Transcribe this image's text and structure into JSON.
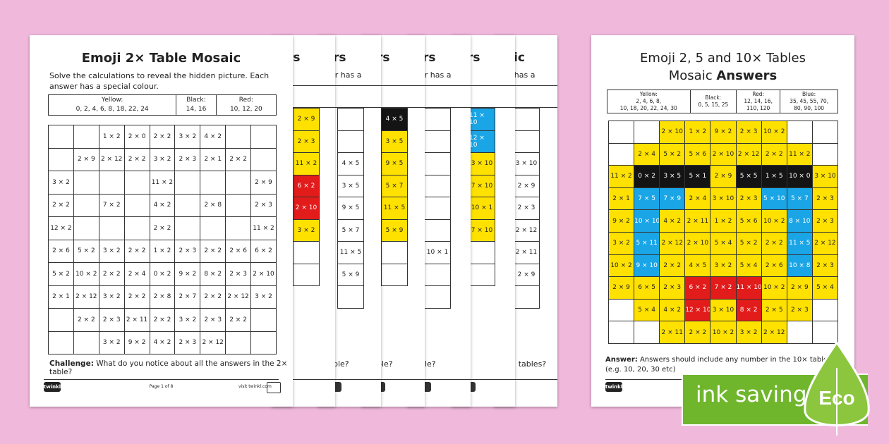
{
  "front": {
    "title": "Emoji 2× Table Mosaic",
    "intro": "Solve the calculations to reveal the hidden picture. Each answer has a special colour.",
    "key": [
      {
        "label": "Yellow:",
        "values": "0, 2, 4, 6, 8, 18, 22, 24"
      },
      {
        "label": "Black:",
        "values": "14, 16"
      },
      {
        "label": "Red:",
        "values": "10, 12, 20"
      }
    ],
    "grid": [
      [
        "",
        "",
        "1 × 2",
        "2 × 0",
        "2 × 2",
        "3 × 2",
        "4 × 2",
        "",
        ""
      ],
      [
        "",
        "2 × 9",
        "2 × 12",
        "2 × 2",
        "3 × 2",
        "2 × 3",
        "2 × 1",
        "2 × 2",
        ""
      ],
      [
        "3 × 2",
        "",
        "",
        "",
        "11 × 2",
        "",
        "",
        "",
        "2 × 9"
      ],
      [
        "2 × 2",
        "",
        "7 × 2",
        "",
        "4 × 2",
        "",
        "2 × 8",
        "",
        "2 × 3"
      ],
      [
        "12 × 2",
        "",
        "",
        "",
        "2 × 2",
        "",
        "",
        "",
        "11 × 2"
      ],
      [
        "2 × 6",
        "5 × 2",
        "3 × 2",
        "2 × 2",
        "1 × 2",
        "2 × 3",
        "2 × 2",
        "2 × 6",
        "6 × 2"
      ],
      [
        "5 × 2",
        "10 × 2",
        "2 × 2",
        "2 × 4",
        "0 × 2",
        "9 × 2",
        "8 × 2",
        "2 × 3",
        "2 × 10"
      ],
      [
        "2 × 1",
        "2 × 12",
        "3 × 2",
        "2 × 2",
        "2 × 8",
        "2 × 7",
        "2 × 2",
        "2 × 12",
        "3 × 2"
      ],
      [
        "",
        "2 × 2",
        "2 × 3",
        "2 × 11",
        "2 × 2",
        "3 × 2",
        "2 × 3",
        "2 × 2",
        ""
      ],
      [
        "",
        "",
        "3 × 2",
        "9 × 2",
        "4 × 2",
        "2 × 3",
        "2 × 12",
        "",
        ""
      ]
    ],
    "challenge_label": "Challenge:",
    "challenge_text": " What do you notice about all the answers in the 2× table?",
    "logo": "twinkl",
    "page": "Page 1 of 8",
    "url": "visit twinkl.com"
  },
  "ghosts": [
    {
      "title": "rs",
      "text": "",
      "bottom": "",
      "col": [
        [
          "2 × 9",
          "y"
        ],
        [
          "2 × 3",
          "y"
        ],
        [
          "11 × 2",
          "y"
        ],
        [
          "6 × 2",
          "r"
        ],
        [
          "2 × 10",
          "r"
        ],
        [
          "3 × 2",
          "y"
        ],
        [
          "",
          ""
        ],
        [
          "",
          ""
        ]
      ]
    },
    {
      "title": "rs",
      "text": "er has a",
      "bottom": "ble?",
      "col": [
        [
          "",
          ""
        ],
        [
          "",
          ""
        ],
        [
          "4 × 5",
          ""
        ],
        [
          "3 × 5",
          ""
        ],
        [
          "9 × 5",
          ""
        ],
        [
          "5 × 7",
          ""
        ],
        [
          "11 × 5",
          ""
        ],
        [
          "5 × 9",
          ""
        ],
        [
          "",
          ""
        ]
      ]
    },
    {
      "title": "rs",
      "text": "er has a",
      "bottom": "ble?",
      "col": [
        [
          "4 × 5",
          "k"
        ],
        [
          "3 × 5",
          "y"
        ],
        [
          "9 × 5",
          "y"
        ],
        [
          "5 × 7",
          "y"
        ],
        [
          "11 × 5",
          "y"
        ],
        [
          "5 × 9",
          "y"
        ],
        [
          "",
          ""
        ],
        [
          "",
          ""
        ]
      ]
    },
    {
      "title": "rs",
      "text": "er has a",
      "bottom": "ble?",
      "col": [
        [
          "",
          ""
        ],
        [
          "",
          ""
        ],
        [
          "",
          ""
        ],
        [
          "",
          ""
        ],
        [
          "",
          ""
        ],
        [
          "",
          ""
        ],
        [
          "10 × 1",
          ""
        ],
        [
          "",
          ""
        ],
        [
          "",
          ""
        ]
      ]
    },
    {
      "title": "rs",
      "text": "",
      "bottom": "",
      "col": [
        [
          "11 × 10",
          "b"
        ],
        [
          "12 × 10",
          "b"
        ],
        [
          "3 × 10",
          "y"
        ],
        [
          "7 × 10",
          "y"
        ],
        [
          "10 × 1",
          "y"
        ],
        [
          "7 × 10",
          "y"
        ],
        [
          "",
          ""
        ],
        [
          "",
          ""
        ]
      ]
    },
    {
      "title": "ic",
      "text": "er has a",
      "bottom": "× tables?",
      "col": [
        [
          "",
          ""
        ],
        [
          "",
          ""
        ],
        [
          "3 × 10",
          ""
        ],
        [
          "2 × 9",
          ""
        ],
        [
          "2 × 3",
          ""
        ],
        [
          "2 × 12",
          ""
        ],
        [
          "2 × 11",
          ""
        ],
        [
          "2 × 9",
          ""
        ],
        [
          "",
          ""
        ]
      ]
    }
  ],
  "answers": {
    "title_line1": "Emoji 2, 5 and 10× Tables",
    "title_line2_plain": "Mosaic ",
    "title_line2_bold": "Answers",
    "key": [
      {
        "label": "Yellow:",
        "values": "2, 4, 6, 8,",
        "values2": "10, 18, 20, 22, 24, 30"
      },
      {
        "label": "Black:",
        "values": "0, 5, 15, 25",
        "values2": ""
      },
      {
        "label": "Red:",
        "values": "12, 14, 16,",
        "values2": "110, 120"
      },
      {
        "label": "Blue:",
        "values": "35, 45, 55, 70,",
        "values2": "80, 90, 100"
      }
    ],
    "grid": [
      [
        "",
        "",
        "2 × 10",
        "1 × 2",
        "9 × 2",
        "2 × 3",
        "10 × 2",
        "",
        ""
      ],
      [
        "",
        "2 × 4",
        "5 × 2",
        "5 × 6",
        "2 × 10",
        "2 × 12",
        "2 × 2",
        "11 × 2",
        ""
      ],
      [
        "11 × 2",
        "0 × 2",
        "3 × 5",
        "5 × 1",
        "2 × 9",
        "5 × 5",
        "1 × 5",
        "10 × 0",
        "3 × 10"
      ],
      [
        "2 × 1",
        "7 × 5",
        "7 × 9",
        "2 × 4",
        "3 × 10",
        "2 × 3",
        "5 × 10",
        "5 × 7",
        "2 × 3"
      ],
      [
        "9 × 2",
        "10 × 10",
        "4 × 2",
        "2 × 11",
        "1 × 2",
        "5 × 6",
        "10 × 2",
        "8 × 10",
        "2 × 3"
      ],
      [
        "3 × 2",
        "5 × 11",
        "2 × 12",
        "2 × 10",
        "5 × 4",
        "5 × 2",
        "2 × 2",
        "11 × 5",
        "2 × 12"
      ],
      [
        "10 × 2",
        "9 × 10",
        "2 × 2",
        "4 × 5",
        "3 × 2",
        "5 × 4",
        "2 × 6",
        "10 × 8",
        "2 × 3"
      ],
      [
        "2 × 9",
        "6 × 5",
        "2 × 3",
        "6 × 2",
        "7 × 2",
        "11 × 10",
        "10 × 2",
        "2 × 9",
        "5 × 4"
      ],
      [
        "",
        "5 × 4",
        "4 × 2",
        "12 × 10",
        "3 × 10",
        "8 × 2",
        "2 × 5",
        "2 × 3",
        ""
      ],
      [
        "",
        "",
        "2 × 11",
        "2 × 2",
        "10 × 2",
        "3 × 2",
        "2 × 12",
        "",
        ""
      ]
    ],
    "colors": [
      [
        "w",
        "w",
        "y",
        "y",
        "y",
        "y",
        "y",
        "w",
        "w"
      ],
      [
        "w",
        "y",
        "y",
        "y",
        "y",
        "y",
        "y",
        "y",
        "w"
      ],
      [
        "y",
        "k",
        "k",
        "k",
        "y",
        "k",
        "k",
        "k",
        "y"
      ],
      [
        "y",
        "b",
        "b",
        "y",
        "y",
        "y",
        "b",
        "b",
        "y"
      ],
      [
        "y",
        "b",
        "y",
        "y",
        "y",
        "y",
        "y",
        "b",
        "y"
      ],
      [
        "y",
        "b",
        "y",
        "y",
        "y",
        "y",
        "y",
        "b",
        "y"
      ],
      [
        "y",
        "b",
        "y",
        "y",
        "y",
        "y",
        "y",
        "b",
        "y"
      ],
      [
        "y",
        "y",
        "y",
        "r",
        "r",
        "r",
        "y",
        "y",
        "y"
      ],
      [
        "w",
        "y",
        "y",
        "r",
        "y",
        "r",
        "y",
        "y",
        "w"
      ],
      [
        "w",
        "w",
        "y",
        "y",
        "y",
        "y",
        "y",
        "w",
        "w"
      ]
    ],
    "answer_label": "Answer:",
    "answer_text": " Answers should include any number in the 10× table (e.g. 10, 20, 30 etc)",
    "logo": "twinkl"
  },
  "badge": {
    "text": "ink saving",
    "eco": "Eco",
    "color": "#6fb62d"
  }
}
